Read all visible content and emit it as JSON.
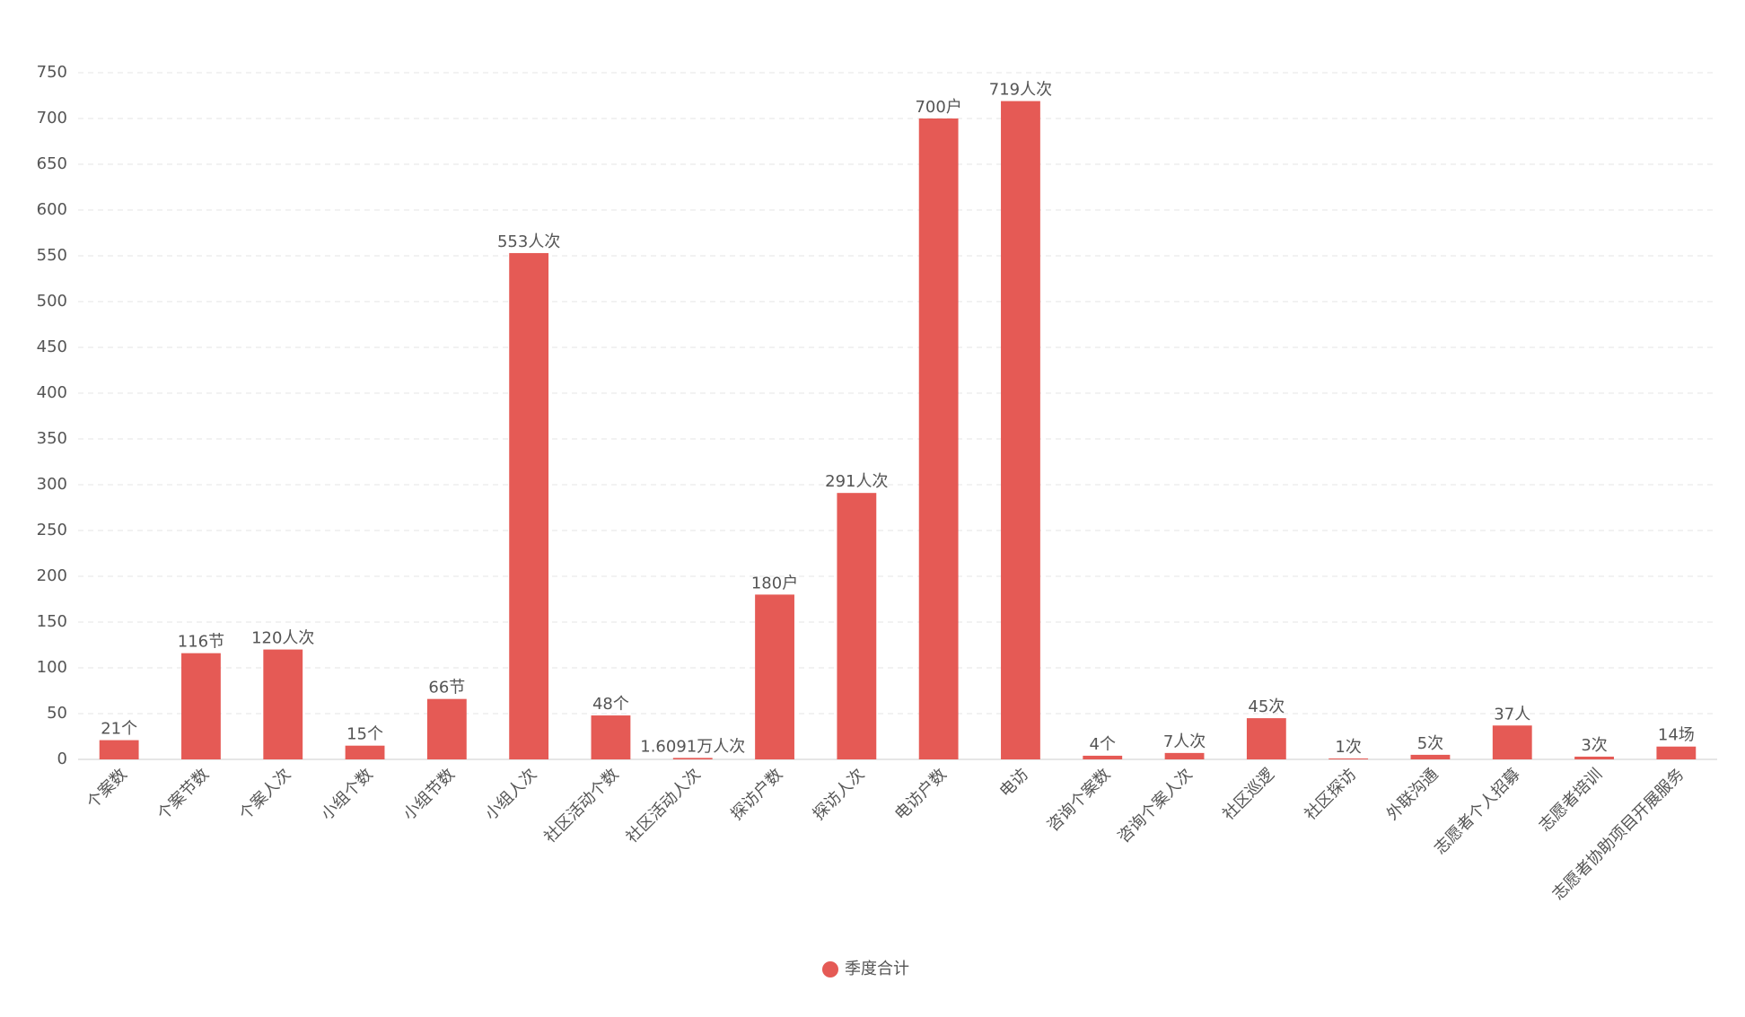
{
  "chart_data": {
    "type": "bar",
    "categories": [
      "个案数",
      "个案节数",
      "个案人次",
      "小组个数",
      "小组节数",
      "小组人次",
      "社区活动个数",
      "社区活动人次",
      "探访户数",
      "探访人次",
      "电访户数",
      "电访",
      "咨询个案数",
      "咨询个案人次",
      "社区巡逻",
      "社区探访",
      "外联沟通",
      "志愿者个人招募",
      "志愿者培训",
      "志愿者协助项目开展服务"
    ],
    "series": [
      {
        "name": "季度合计",
        "color": "#e55a55",
        "values": [
          21,
          116,
          120,
          15,
          66,
          553,
          48,
          1.6091,
          180,
          291,
          700,
          719,
          4,
          7,
          45,
          1,
          5,
          37,
          3,
          14
        ],
        "value_labels": [
          "21个",
          "116节",
          "120人次",
          "15个",
          "66节",
          "553人次",
          "48个",
          "1.6091万人次",
          "180户",
          "291人次",
          "700户",
          "719人次",
          "4个",
          "7人次",
          "45次",
          "1次",
          "5次",
          "37人",
          "3次",
          "14场"
        ]
      }
    ],
    "ylim": [
      0,
      750
    ],
    "yticks": [
      0,
      50,
      100,
      150,
      200,
      250,
      300,
      350,
      400,
      450,
      500,
      550,
      600,
      650,
      700,
      750
    ],
    "grid": true,
    "legend": "bottom"
  }
}
